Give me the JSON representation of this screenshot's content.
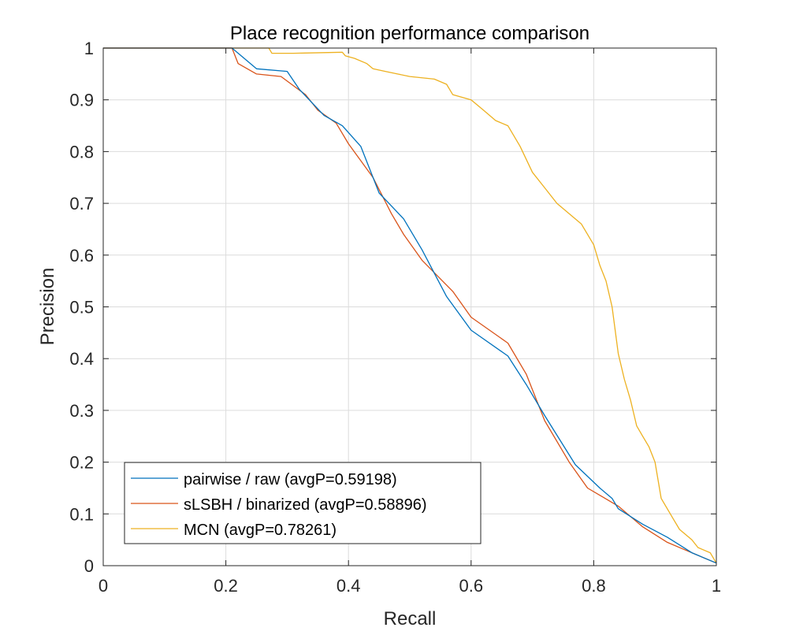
{
  "chart_data": {
    "type": "line",
    "title": "Place recognition performance comparison",
    "xlabel": "Recall",
    "ylabel": "Precision",
    "xlim": [
      0,
      1
    ],
    "ylim": [
      0,
      1
    ],
    "grid": true,
    "legend_position": "bottom-left",
    "x_ticks": [
      "0",
      "0.2",
      "0.4",
      "0.6",
      "0.8",
      "1"
    ],
    "y_ticks": [
      "0",
      "0.1",
      "0.2",
      "0.3",
      "0.4",
      "0.5",
      "0.6",
      "0.7",
      "0.8",
      "0.9",
      "1"
    ],
    "series": [
      {
        "name": "pairwise / raw (avgP=0.59198)",
        "color": "#0072BD",
        "x": [
          0,
          0.2,
          0.21,
          0.25,
          0.3,
          0.32,
          0.36,
          0.39,
          0.42,
          0.45,
          0.49,
          0.52,
          0.56,
          0.6,
          0.66,
          0.69,
          0.72,
          0.77,
          0.81,
          0.83,
          0.84,
          0.88,
          0.92,
          0.94,
          0.96,
          1
        ],
        "y": [
          1,
          1,
          1,
          0.96,
          0.955,
          0.92,
          0.87,
          0.85,
          0.81,
          0.72,
          0.67,
          0.61,
          0.52,
          0.455,
          0.405,
          0.35,
          0.29,
          0.195,
          0.15,
          0.13,
          0.11,
          0.08,
          0.055,
          0.04,
          0.025,
          0.005
        ]
      },
      {
        "name": "sLSBH / binarized (avgP=0.58896)",
        "color": "#D95319",
        "x": [
          0,
          0.2,
          0.21,
          0.22,
          0.25,
          0.29,
          0.33,
          0.35,
          0.38,
          0.4,
          0.44,
          0.47,
          0.49,
          0.52,
          0.57,
          0.6,
          0.66,
          0.69,
          0.72,
          0.76,
          0.79,
          0.84,
          0.88,
          0.92,
          0.95,
          0.97,
          1
        ],
        "y": [
          1,
          1,
          1,
          0.97,
          0.95,
          0.945,
          0.91,
          0.88,
          0.855,
          0.815,
          0.75,
          0.68,
          0.64,
          0.59,
          0.53,
          0.48,
          0.43,
          0.37,
          0.28,
          0.2,
          0.15,
          0.115,
          0.075,
          0.045,
          0.03,
          0.02,
          0.005
        ]
      },
      {
        "name": "MCN (avgP=0.78261)",
        "color": "#EDB120",
        "x": [
          0,
          0.27,
          0.275,
          0.31,
          0.39,
          0.395,
          0.41,
          0.43,
          0.44,
          0.46,
          0.48,
          0.5,
          0.54,
          0.56,
          0.57,
          0.6,
          0.62,
          0.64,
          0.66,
          0.68,
          0.7,
          0.72,
          0.74,
          0.78,
          0.8,
          0.81,
          0.82,
          0.83,
          0.84,
          0.85,
          0.86,
          0.87,
          0.88,
          0.89,
          0.9,
          0.91,
          0.93,
          0.94,
          0.96,
          0.97,
          0.99,
          1
        ],
        "y": [
          1,
          1,
          0.99,
          0.99,
          0.992,
          0.985,
          0.98,
          0.97,
          0.96,
          0.955,
          0.95,
          0.945,
          0.94,
          0.93,
          0.91,
          0.9,
          0.88,
          0.86,
          0.85,
          0.81,
          0.76,
          0.73,
          0.7,
          0.66,
          0.62,
          0.58,
          0.55,
          0.5,
          0.41,
          0.36,
          0.32,
          0.27,
          0.25,
          0.23,
          0.2,
          0.13,
          0.09,
          0.07,
          0.05,
          0.035,
          0.025,
          0.005
        ]
      }
    ]
  }
}
